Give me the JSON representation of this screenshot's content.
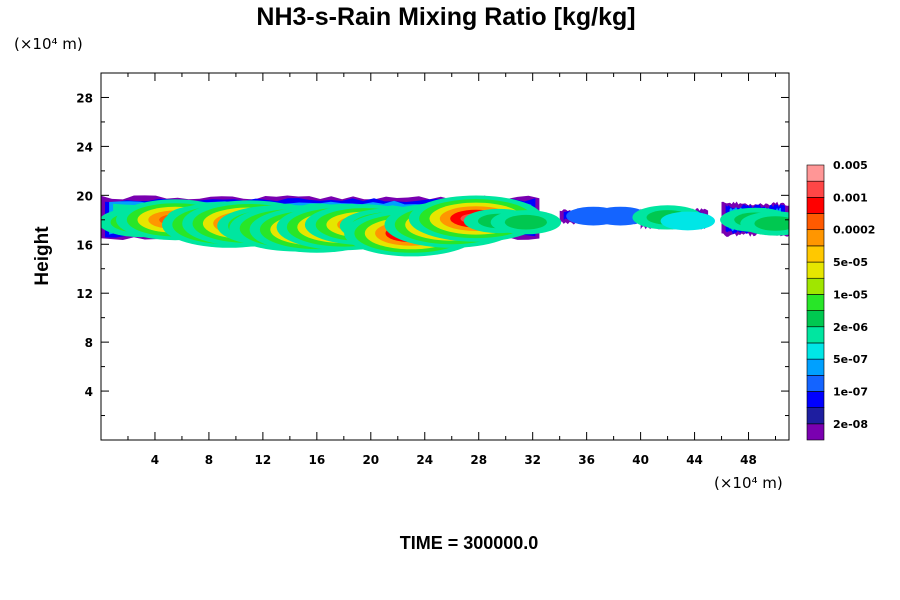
{
  "chart_data": {
    "type": "heatmap",
    "title": "NH3-s-Rain Mixing Ratio [kg/kg]",
    "ylabel": "Height",
    "xunit": "(×10⁴ m)",
    "yunit": "(×10⁴ m)",
    "xlim": [
      0,
      51
    ],
    "ylim": [
      0,
      30
    ],
    "xticks": [
      4,
      8,
      12,
      16,
      20,
      24,
      28,
      32,
      36,
      40,
      44,
      48
    ],
    "yticks": [
      4,
      8,
      12,
      16,
      20,
      24,
      28
    ],
    "colorbar": {
      "levels": [
        "2e-08",
        "1e-07",
        "5e-07",
        "2e-06",
        "1e-05",
        "5e-05",
        "0.0002",
        "0.001",
        "0.005"
      ],
      "colors": [
        "#7a00b0",
        "#1e1ea0",
        "#0000ff",
        "#1464ff",
        "#00a0ff",
        "#00e6e6",
        "#00e6a0",
        "#00c850",
        "#28e628",
        "#a0e600",
        "#e6e600",
        "#ffc800",
        "#ff9600",
        "#ff5a00",
        "#ff0000",
        "#ff4646",
        "#ff9696"
      ]
    },
    "clouds": [
      {
        "x0": 0.0,
        "x1": 32.5,
        "ybot": 16.3,
        "ytop": 20.0
      },
      {
        "x0": 34.0,
        "x1": 40.0,
        "ybot": 17.6,
        "ytop": 19.0
      },
      {
        "x0": 40.0,
        "x1": 45.0,
        "ybot": 17.2,
        "ytop": 19.0
      },
      {
        "x0": 46.0,
        "x1": 51.0,
        "ybot": 16.6,
        "ytop": 19.5
      }
    ],
    "cores": [
      {
        "x": 3.0,
        "y": 17.8,
        "value": "1e-05"
      },
      {
        "x": 5.5,
        "y": 18.0,
        "value": "0.0002"
      },
      {
        "x": 7.5,
        "y": 18.2,
        "value": "2e-06"
      },
      {
        "x": 9.5,
        "y": 17.6,
        "value": "0.001"
      },
      {
        "x": 11.0,
        "y": 17.7,
        "value": "0.001"
      },
      {
        "x": 13.0,
        "y": 17.5,
        "value": "0.0002"
      },
      {
        "x": 14.5,
        "y": 17.3,
        "value": "0.001"
      },
      {
        "x": 16.0,
        "y": 17.2,
        "value": "0.001"
      },
      {
        "x": 18.0,
        "y": 17.4,
        "value": "0.001"
      },
      {
        "x": 19.5,
        "y": 17.6,
        "value": "0.0002"
      },
      {
        "x": 21.5,
        "y": 17.5,
        "value": "5e-05"
      },
      {
        "x": 23.0,
        "y": 16.9,
        "value": "0.001"
      },
      {
        "x": 26.0,
        "y": 17.6,
        "value": "0.001"
      },
      {
        "x": 27.8,
        "y": 18.1,
        "value": "0.001"
      },
      {
        "x": 29.5,
        "y": 17.9,
        "value": "2e-06"
      },
      {
        "x": 31.5,
        "y": 17.8,
        "value": "2e-06"
      },
      {
        "x": 36.5,
        "y": 18.3,
        "value": "1e-07"
      },
      {
        "x": 38.5,
        "y": 18.3,
        "value": "1e-07"
      },
      {
        "x": 42.0,
        "y": 18.2,
        "value": "2e-06"
      },
      {
        "x": 43.5,
        "y": 17.9,
        "value": "5e-07"
      },
      {
        "x": 48.5,
        "y": 18.0,
        "value": "2e-06"
      },
      {
        "x": 50.0,
        "y": 17.7,
        "value": "2e-06"
      }
    ]
  },
  "time_label": "TIME = 300000.0"
}
